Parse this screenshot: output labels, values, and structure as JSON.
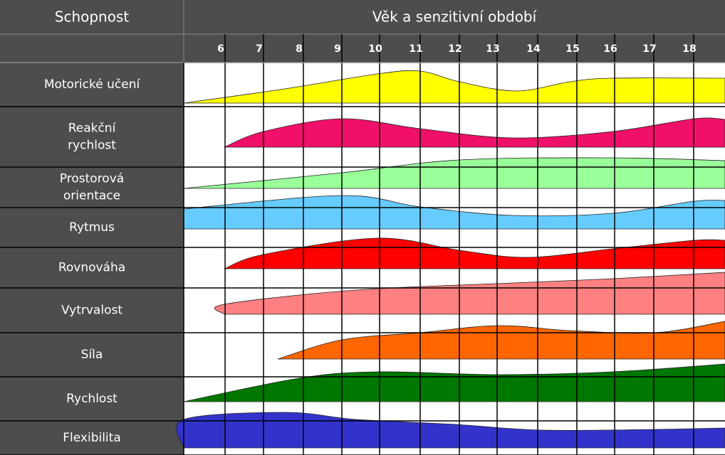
{
  "header": {
    "ability": "Schopnost",
    "age": "Věk a senzitivní období"
  },
  "ages": [
    "6",
    "7",
    "8",
    "9",
    "10",
    "11",
    "12",
    "13",
    "14",
    "15",
    "16",
    "17",
    "18"
  ],
  "rows": [
    [
      "Motorické učení"
    ],
    [
      "Reakční",
      "rychlost"
    ],
    [
      "Prostorová",
      "orientace"
    ],
    [
      "Rytmus"
    ],
    [
      "Rovnováha"
    ],
    [
      "Vytrvalost"
    ],
    [
      "Síla"
    ],
    [
      "Rychlost"
    ],
    [
      "Flexibilita"
    ]
  ]
}
